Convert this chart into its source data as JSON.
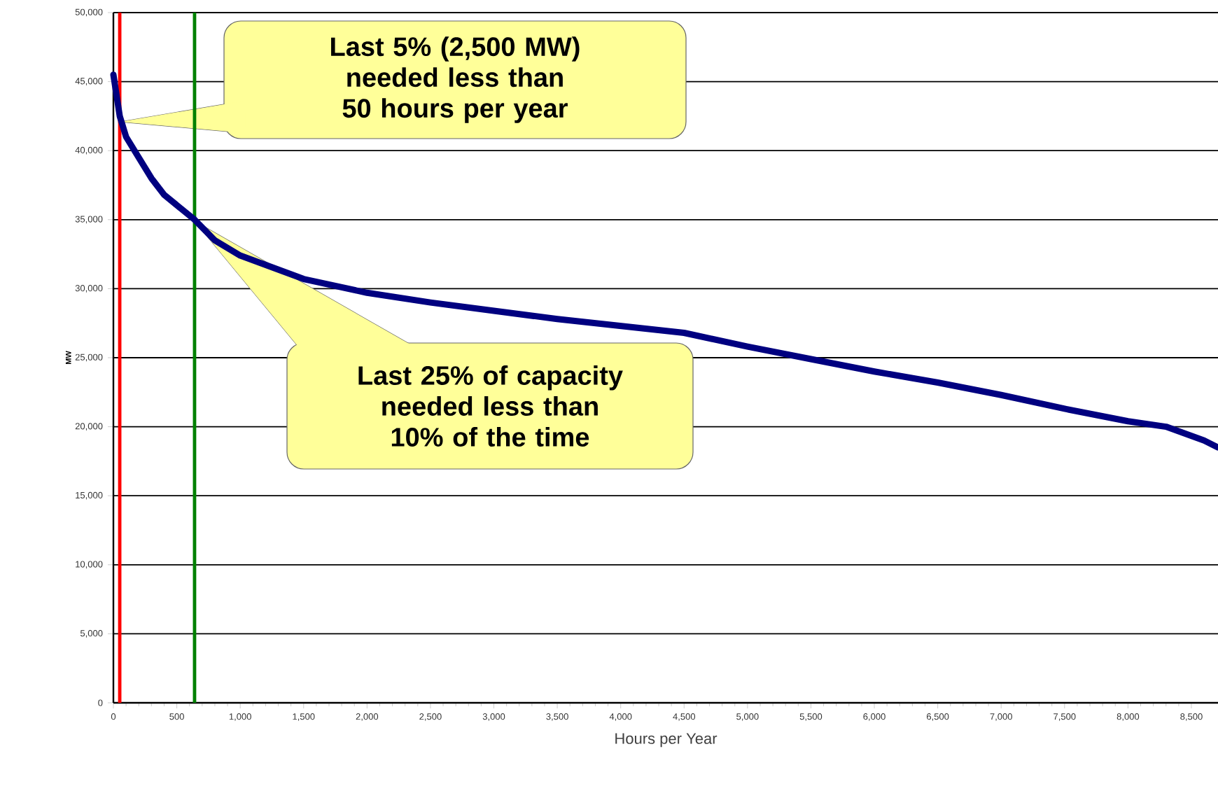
{
  "chart_data": {
    "type": "line",
    "xlabel": "Hours per Year",
    "ylabel": "MW",
    "x": [
      0,
      50,
      100,
      200,
      300,
      400,
      640,
      800,
      1000,
      1500,
      2000,
      2500,
      3000,
      3500,
      4000,
      4500,
      5000,
      5500,
      6000,
      6500,
      7000,
      7500,
      8000,
      8300,
      8600,
      8710
    ],
    "series": [
      {
        "color": "#000080",
        "values": [
          45500,
          42500,
          41000,
          39500,
          38000,
          36800,
          35000,
          33500,
          32400,
          30700,
          29700,
          29000,
          28400,
          27800,
          27300,
          26800,
          25800,
          24900,
          24000,
          23200,
          22300,
          21300,
          20400,
          20000,
          19000,
          18500
        ]
      }
    ],
    "xlim": [
      0,
      8710
    ],
    "ylim": [
      0,
      50000
    ],
    "xticks": [
      0,
      {
        "value": 500,
        "label": "500"
      },
      {
        "value": 1000,
        "label": "1,000"
      },
      {
        "value": 1500,
        "label": "1,500"
      },
      {
        "value": 2000,
        "label": "2,000"
      },
      {
        "value": 2500,
        "label": "2,500"
      },
      {
        "value": 3000,
        "label": "3,000"
      },
      {
        "value": 3500,
        "label": "3,500"
      },
      {
        "value": 4000,
        "label": "4,000"
      },
      {
        "value": 4500,
        "label": "4,500"
      },
      {
        "value": 5000,
        "label": "5,000"
      },
      {
        "value": 5500,
        "label": "5,500"
      },
      {
        "value": 6000,
        "label": "6,000"
      },
      {
        "value": 6500,
        "label": "6,500"
      },
      {
        "value": 7000,
        "label": "7,000"
      },
      {
        "value": 7500,
        "label": "7,500"
      },
      {
        "value": 8000,
        "label": "8,000"
      },
      {
        "value": 8500,
        "label": "8,500"
      }
    ],
    "yticks": [
      0,
      {
        "value": 5000,
        "label": "5,000"
      },
      {
        "value": 10000,
        "label": "10,000"
      },
      {
        "value": 15000,
        "label": "15,000"
      },
      {
        "value": 20000,
        "label": "20,000"
      },
      {
        "value": 25000,
        "label": "25,000"
      },
      {
        "value": 30000,
        "label": "30,000"
      },
      {
        "value": 35000,
        "label": "35,000"
      },
      {
        "value": 40000,
        "label": "40,000"
      },
      {
        "value": 45000,
        "label": "45,000"
      },
      {
        "value": 50000,
        "label": "50,000"
      }
    ],
    "grid": "y",
    "ref_lines": [
      {
        "axis": "x",
        "value": 50,
        "color": "#ff0000"
      },
      {
        "axis": "x",
        "value": 640,
        "color": "#008000"
      }
    ],
    "annotations": [
      "Last 5% (2,500 MW) needed less than 50 hours per year",
      "Last 25% of capacity needed less than 10% of the time"
    ]
  }
}
